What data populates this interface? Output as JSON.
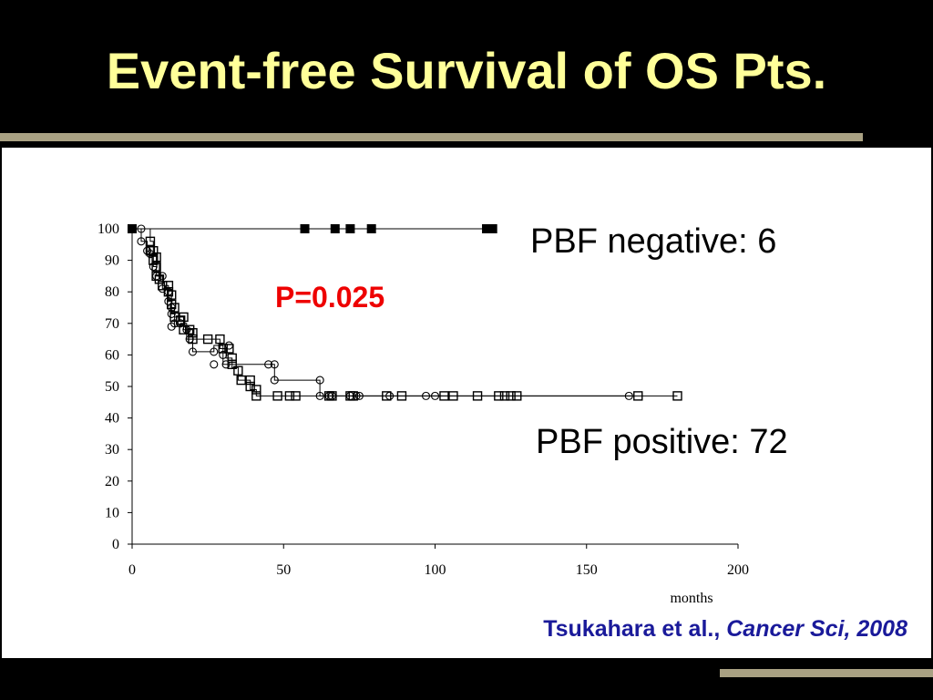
{
  "slide": {
    "title": "Event-free Survival of OS Pts.",
    "accent_color": "#a9a183",
    "title_color": "#ffff99"
  },
  "annotations": {
    "negative_label": "PBF negative: 6",
    "positive_label": "PBF positive: 72",
    "p_value": "P=0.025",
    "p_value_color": "#ee0000"
  },
  "citation": {
    "authors": "Tsukahara et al.,",
    "journal": "Cancer Sci, 2008",
    "color": "#1a1a9a"
  },
  "chart_data": {
    "type": "line",
    "title": "",
    "xlabel": "months",
    "ylabel": "",
    "xlim": [
      0,
      200
    ],
    "ylim": [
      0,
      100
    ],
    "x_ticks": [
      0,
      50,
      100,
      150,
      200
    ],
    "y_ticks": [
      0,
      10,
      20,
      30,
      40,
      50,
      60,
      70,
      80,
      90,
      100
    ],
    "grid": false,
    "legend": "none",
    "series": [
      {
        "marker": "filled-square",
        "step": [
          [
            0,
            100
          ],
          [
            120,
            100
          ]
        ],
        "markers": [
          [
            0,
            100
          ],
          [
            57,
            100
          ],
          [
            67,
            100
          ],
          [
            72,
            100
          ],
          [
            79,
            100
          ],
          [
            117,
            100
          ],
          [
            119,
            100
          ]
        ]
      },
      {
        "marker": "open-circle",
        "step": [
          [
            0,
            100
          ],
          [
            3,
            100
          ],
          [
            3,
            96
          ],
          [
            5,
            96
          ],
          [
            5,
            92
          ],
          [
            7,
            92
          ],
          [
            7,
            88
          ],
          [
            8,
            88
          ],
          [
            8,
            85
          ],
          [
            10,
            85
          ],
          [
            10,
            81
          ],
          [
            12,
            81
          ],
          [
            12,
            77
          ],
          [
            13,
            77
          ],
          [
            13,
            73
          ],
          [
            14,
            73
          ],
          [
            14,
            69
          ],
          [
            16,
            69
          ],
          [
            16,
            70
          ],
          [
            18,
            70
          ],
          [
            18,
            65
          ],
          [
            20,
            65
          ],
          [
            20,
            61
          ],
          [
            27,
            61
          ],
          [
            27,
            63
          ],
          [
            30,
            63
          ],
          [
            30,
            57
          ],
          [
            45,
            57
          ],
          [
            47,
            57
          ],
          [
            47,
            52
          ],
          [
            62,
            52
          ],
          [
            62,
            47
          ],
          [
            165,
            47
          ]
        ],
        "markers": [
          [
            3,
            100
          ],
          [
            3,
            96
          ],
          [
            5,
            93
          ],
          [
            6,
            92
          ],
          [
            7,
            88
          ],
          [
            8,
            85
          ],
          [
            10,
            85
          ],
          [
            10,
            81
          ],
          [
            12,
            80
          ],
          [
            12,
            77
          ],
          [
            13,
            75
          ],
          [
            13,
            73
          ],
          [
            13,
            69
          ],
          [
            14,
            70
          ],
          [
            16,
            70
          ],
          [
            18,
            68
          ],
          [
            19,
            65
          ],
          [
            20,
            61
          ],
          [
            27,
            61
          ],
          [
            27,
            57
          ],
          [
            30,
            60
          ],
          [
            31,
            57
          ],
          [
            32,
            63
          ],
          [
            45,
            57
          ],
          [
            47,
            57
          ],
          [
            47,
            52
          ],
          [
            62,
            52
          ],
          [
            62,
            47
          ],
          [
            65,
            47
          ],
          [
            66,
            47
          ],
          [
            72,
            47
          ],
          [
            74,
            47
          ],
          [
            75,
            47
          ],
          [
            85,
            47
          ],
          [
            97,
            47
          ],
          [
            100,
            47
          ],
          [
            164,
            47
          ]
        ]
      },
      {
        "marker": "open-square",
        "step": [
          [
            0,
            100
          ],
          [
            6,
            100
          ],
          [
            6,
            96
          ],
          [
            7,
            96
          ],
          [
            7,
            92
          ],
          [
            8,
            92
          ],
          [
            8,
            89
          ],
          [
            9,
            89
          ],
          [
            9,
            85
          ],
          [
            10,
            85
          ],
          [
            10,
            82
          ],
          [
            12,
            82
          ],
          [
            12,
            79
          ],
          [
            13,
            79
          ],
          [
            13,
            75
          ],
          [
            14,
            75
          ],
          [
            14,
            72
          ],
          [
            17,
            72
          ],
          [
            17,
            68
          ],
          [
            20,
            68
          ],
          [
            20,
            65
          ],
          [
            25,
            65
          ],
          [
            29,
            65
          ],
          [
            29,
            62
          ],
          [
            31,
            62
          ],
          [
            31,
            59
          ],
          [
            33,
            59
          ],
          [
            33,
            56
          ],
          [
            35,
            56
          ],
          [
            35,
            52
          ],
          [
            39,
            52
          ],
          [
            39,
            49
          ],
          [
            41,
            49
          ],
          [
            41,
            47
          ],
          [
            180,
            47
          ]
        ],
        "markers": [
          [
            6,
            96
          ],
          [
            6,
            93
          ],
          [
            7,
            93
          ],
          [
            7,
            90
          ],
          [
            8,
            91
          ],
          [
            8,
            88
          ],
          [
            8,
            85
          ],
          [
            9,
            84
          ],
          [
            10,
            82
          ],
          [
            12,
            82
          ],
          [
            12,
            80
          ],
          [
            13,
            79
          ],
          [
            13,
            76
          ],
          [
            14,
            75
          ],
          [
            14,
            72
          ],
          [
            16,
            71
          ],
          [
            17,
            72
          ],
          [
            17,
            68
          ],
          [
            19,
            68
          ],
          [
            20,
            67
          ],
          [
            20,
            65
          ],
          [
            25,
            65
          ],
          [
            29,
            65
          ],
          [
            30,
            62
          ],
          [
            32,
            62
          ],
          [
            33,
            59
          ],
          [
            33,
            57
          ],
          [
            35,
            55
          ],
          [
            36,
            52
          ],
          [
            39,
            52
          ],
          [
            39,
            50
          ],
          [
            41,
            49
          ],
          [
            41,
            47
          ],
          [
            48,
            47
          ],
          [
            52,
            47
          ],
          [
            54,
            47
          ],
          [
            65,
            47
          ],
          [
            66,
            47
          ],
          [
            72,
            47
          ],
          [
            73,
            47
          ],
          [
            84,
            47
          ],
          [
            89,
            47
          ],
          [
            103,
            47
          ],
          [
            106,
            47
          ],
          [
            114,
            47
          ],
          [
            121,
            47
          ],
          [
            123,
            47
          ],
          [
            125,
            47
          ],
          [
            127,
            47
          ],
          [
            167,
            47
          ],
          [
            180,
            47
          ]
        ]
      }
    ]
  }
}
